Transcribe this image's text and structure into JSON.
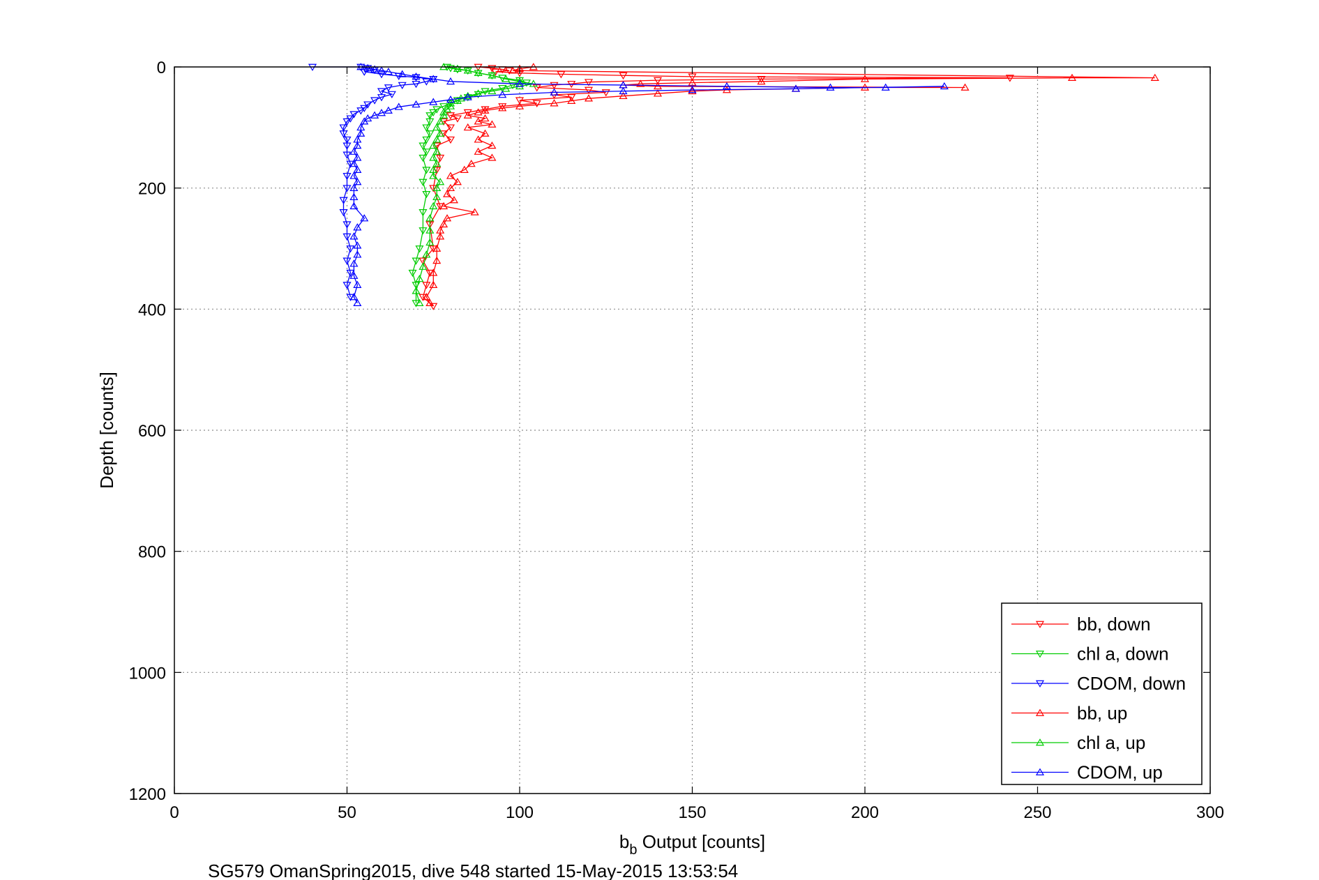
{
  "chart_data": {
    "type": "scatter",
    "xlabel_main": "b",
    "xlabel_sub": "b",
    "xlabel_rest": " Output [counts]",
    "ylabel": "Depth [counts]",
    "caption": "SG579 OmanSpring2015, dive 548 started 15-May-2015 13:53:54",
    "xlim": [
      0,
      300
    ],
    "ylim": [
      1200,
      0
    ],
    "y_reversed": true,
    "xticks": [
      "0",
      "50",
      "100",
      "150",
      "200",
      "250",
      "300"
    ],
    "yticks": [
      "0",
      "200",
      "400",
      "600",
      "800",
      "1000",
      "1200"
    ],
    "grid": true,
    "legend_position": "bottom-right",
    "legend": [
      "bb, down",
      "chl a, down",
      "CDOM, down",
      "bb, up",
      "chl a, up",
      "CDOM, up"
    ],
    "series": [
      {
        "name": "bb, down",
        "color": "#ff0000",
        "marker": "triangle-down",
        "points": [
          [
            88,
            0
          ],
          [
            92,
            2
          ],
          [
            95,
            4
          ],
          [
            97,
            6
          ],
          [
            93,
            8
          ],
          [
            100,
            10
          ],
          [
            112,
            12
          ],
          [
            130,
            14
          ],
          [
            150,
            16
          ],
          [
            242,
            18
          ],
          [
            170,
            20
          ],
          [
            140,
            22
          ],
          [
            120,
            25
          ],
          [
            115,
            28
          ],
          [
            110,
            30
          ],
          [
            105,
            34
          ],
          [
            120,
            38
          ],
          [
            125,
            42
          ],
          [
            110,
            46
          ],
          [
            115,
            50
          ],
          [
            100,
            55
          ],
          [
            105,
            60
          ],
          [
            95,
            65
          ],
          [
            90,
            70
          ],
          [
            85,
            75
          ],
          [
            80,
            80
          ],
          [
            82,
            85
          ],
          [
            78,
            90
          ],
          [
            80,
            100
          ],
          [
            78,
            110
          ],
          [
            80,
            120
          ],
          [
            76,
            130
          ],
          [
            77,
            150
          ],
          [
            76,
            170
          ],
          [
            75,
            200
          ],
          [
            77,
            230
          ],
          [
            74,
            260
          ],
          [
            75,
            300
          ],
          [
            72,
            320
          ],
          [
            74,
            340
          ],
          [
            73,
            360
          ],
          [
            72,
            380
          ],
          [
            75,
            395
          ]
        ]
      },
      {
        "name": "chl a, down",
        "color": "#00cc00",
        "marker": "triangle-down",
        "points": [
          [
            79,
            0
          ],
          [
            80,
            2
          ],
          [
            82,
            4
          ],
          [
            85,
            6
          ],
          [
            88,
            10
          ],
          [
            92,
            14
          ],
          [
            95,
            18
          ],
          [
            100,
            22
          ],
          [
            102,
            26
          ],
          [
            98,
            30
          ],
          [
            95,
            35
          ],
          [
            90,
            40
          ],
          [
            88,
            45
          ],
          [
            85,
            50
          ],
          [
            82,
            55
          ],
          [
            80,
            60
          ],
          [
            78,
            65
          ],
          [
            76,
            70
          ],
          [
            75,
            75
          ],
          [
            74,
            80
          ],
          [
            74,
            90
          ],
          [
            73,
            100
          ],
          [
            74,
            110
          ],
          [
            73,
            120
          ],
          [
            72,
            130
          ],
          [
            73,
            140
          ],
          [
            72,
            150
          ],
          [
            73,
            170
          ],
          [
            72,
            190
          ],
          [
            73,
            210
          ],
          [
            72,
            240
          ],
          [
            72,
            270
          ],
          [
            71,
            300
          ],
          [
            70,
            320
          ],
          [
            69,
            340
          ],
          [
            70,
            360
          ],
          [
            70,
            390
          ]
        ]
      },
      {
        "name": "CDOM, down",
        "color": "#0000ff",
        "marker": "triangle-down",
        "points": [
          [
            40,
            0
          ],
          [
            54,
            0
          ],
          [
            56,
            2
          ],
          [
            58,
            5
          ],
          [
            55,
            8
          ],
          [
            60,
            12
          ],
          [
            65,
            15
          ],
          [
            70,
            17
          ],
          [
            75,
            20
          ],
          [
            73,
            24
          ],
          [
            70,
            28
          ],
          [
            66,
            30
          ],
          [
            62,
            34
          ],
          [
            60,
            40
          ],
          [
            63,
            45
          ],
          [
            60,
            50
          ],
          [
            58,
            55
          ],
          [
            56,
            62
          ],
          [
            55,
            68
          ],
          [
            54,
            72
          ],
          [
            52,
            78
          ],
          [
            51,
            85
          ],
          [
            50,
            90
          ],
          [
            49,
            100
          ],
          [
            49,
            110
          ],
          [
            50,
            120
          ],
          [
            50,
            130
          ],
          [
            50,
            145
          ],
          [
            51,
            160
          ],
          [
            50,
            180
          ],
          [
            50,
            200
          ],
          [
            49,
            220
          ],
          [
            49,
            240
          ],
          [
            50,
            260
          ],
          [
            50,
            280
          ],
          [
            51,
            300
          ],
          [
            50,
            320
          ],
          [
            51,
            340
          ],
          [
            50,
            360
          ],
          [
            51,
            380
          ]
        ]
      },
      {
        "name": "bb, up",
        "color": "#ff0000",
        "marker": "triangle-up",
        "points": [
          [
            104,
            0
          ],
          [
            100,
            3
          ],
          [
            98,
            6
          ],
          [
            284,
            18
          ],
          [
            260,
            18
          ],
          [
            200,
            20
          ],
          [
            170,
            24
          ],
          [
            150,
            26
          ],
          [
            135,
            28
          ],
          [
            130,
            30
          ],
          [
            140,
            32
          ],
          [
            229,
            34
          ],
          [
            200,
            34
          ],
          [
            180,
            36
          ],
          [
            160,
            38
          ],
          [
            150,
            40
          ],
          [
            140,
            44
          ],
          [
            130,
            48
          ],
          [
            120,
            52
          ],
          [
            115,
            56
          ],
          [
            110,
            60
          ],
          [
            100,
            65
          ],
          [
            95,
            68
          ],
          [
            90,
            72
          ],
          [
            88,
            75
          ],
          [
            85,
            80
          ],
          [
            90,
            85
          ],
          [
            88,
            90
          ],
          [
            92,
            95
          ],
          [
            85,
            100
          ],
          [
            90,
            110
          ],
          [
            88,
            120
          ],
          [
            92,
            130
          ],
          [
            88,
            140
          ],
          [
            92,
            150
          ],
          [
            86,
            160
          ],
          [
            84,
            170
          ],
          [
            80,
            180
          ],
          [
            82,
            190
          ],
          [
            80,
            200
          ],
          [
            79,
            210
          ],
          [
            81,
            220
          ],
          [
            78,
            230
          ],
          [
            87,
            240
          ],
          [
            79,
            250
          ],
          [
            78,
            260
          ],
          [
            77,
            270
          ],
          [
            77,
            280
          ],
          [
            76,
            300
          ],
          [
            76,
            320
          ],
          [
            75,
            340
          ],
          [
            75,
            360
          ],
          [
            73,
            380
          ],
          [
            74,
            390
          ]
        ]
      },
      {
        "name": "chl a, up",
        "color": "#00cc00",
        "marker": "triangle-up",
        "points": [
          [
            78,
            0
          ],
          [
            82,
            3
          ],
          [
            85,
            6
          ],
          [
            88,
            10
          ],
          [
            92,
            14
          ],
          [
            96,
            20
          ],
          [
            100,
            24
          ],
          [
            104,
            28
          ],
          [
            100,
            32
          ],
          [
            96,
            36
          ],
          [
            92,
            40
          ],
          [
            88,
            44
          ],
          [
            85,
            48
          ],
          [
            83,
            52
          ],
          [
            82,
            56
          ],
          [
            80,
            60
          ],
          [
            80,
            65
          ],
          [
            79,
            70
          ],
          [
            78,
            75
          ],
          [
            78,
            80
          ],
          [
            77,
            90
          ],
          [
            76,
            100
          ],
          [
            77,
            110
          ],
          [
            76,
            120
          ],
          [
            75,
            130
          ],
          [
            76,
            140
          ],
          [
            75,
            150
          ],
          [
            76,
            160
          ],
          [
            75,
            170
          ],
          [
            75,
            180
          ],
          [
            77,
            190
          ],
          [
            76,
            200
          ],
          [
            76,
            215
          ],
          [
            75,
            230
          ],
          [
            74,
            250
          ],
          [
            74,
            270
          ],
          [
            74,
            290
          ],
          [
            73,
            310
          ],
          [
            72,
            330
          ],
          [
            71,
            350
          ],
          [
            70,
            370
          ],
          [
            71,
            390
          ]
        ]
      },
      {
        "name": "CDOM, up",
        "color": "#0000ff",
        "marker": "triangle-up",
        "points": [
          [
            54,
            0
          ],
          [
            56,
            2
          ],
          [
            58,
            4
          ],
          [
            60,
            6
          ],
          [
            62,
            8
          ],
          [
            66,
            12
          ],
          [
            70,
            16
          ],
          [
            75,
            20
          ],
          [
            80,
            24
          ],
          [
            100,
            28
          ],
          [
            130,
            30
          ],
          [
            160,
            32
          ],
          [
            190,
            34
          ],
          [
            206,
            34
          ],
          [
            223,
            32
          ],
          [
            180,
            36
          ],
          [
            150,
            38
          ],
          [
            130,
            40
          ],
          [
            110,
            42
          ],
          [
            95,
            46
          ],
          [
            85,
            50
          ],
          [
            80,
            54
          ],
          [
            75,
            58
          ],
          [
            70,
            62
          ],
          [
            65,
            66
          ],
          [
            62,
            72
          ],
          [
            60,
            76
          ],
          [
            58,
            80
          ],
          [
            56,
            85
          ],
          [
            55,
            90
          ],
          [
            54,
            100
          ],
          [
            54,
            110
          ],
          [
            53,
            120
          ],
          [
            53,
            130
          ],
          [
            52,
            140
          ],
          [
            53,
            150
          ],
          [
            52,
            160
          ],
          [
            53,
            170
          ],
          [
            52,
            180
          ],
          [
            53,
            190
          ],
          [
            52,
            200
          ],
          [
            52,
            215
          ],
          [
            52,
            230
          ],
          [
            55,
            250
          ],
          [
            53,
            265
          ],
          [
            52,
            280
          ],
          [
            53,
            295
          ],
          [
            53,
            310
          ],
          [
            52,
            325
          ],
          [
            52,
            345
          ],
          [
            53,
            360
          ],
          [
            52,
            380
          ],
          [
            53,
            390
          ]
        ]
      }
    ]
  }
}
